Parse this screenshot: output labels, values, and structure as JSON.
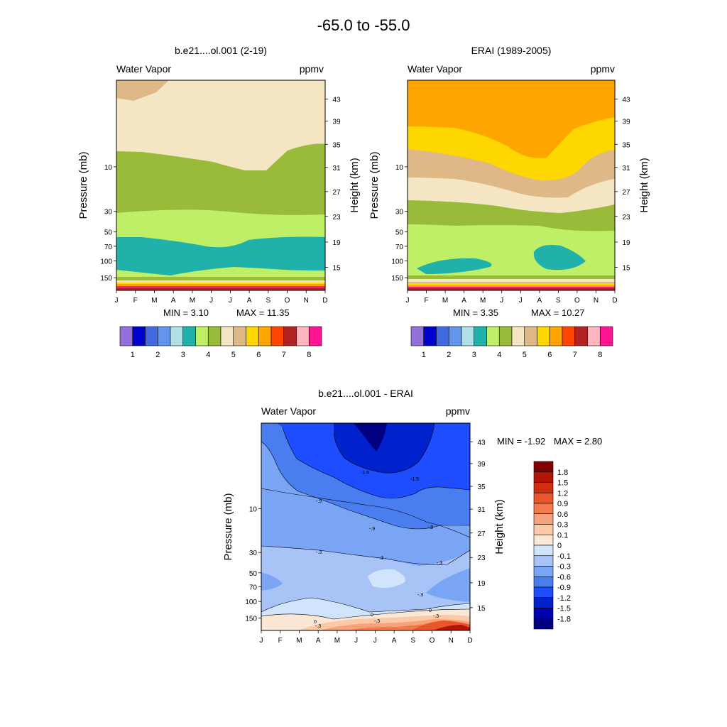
{
  "figure_title": "-65.0 to -55.0",
  "months": [
    "J",
    "F",
    "M",
    "A",
    "M",
    "J",
    "J",
    "A",
    "S",
    "O",
    "N",
    "D"
  ],
  "pressure_ticks": [
    {
      "label": "10",
      "value": 10
    },
    {
      "label": "30",
      "value": 30
    },
    {
      "label": "50",
      "value": 50
    },
    {
      "label": "70",
      "value": 70
    },
    {
      "label": "100",
      "value": 100
    },
    {
      "label": "150",
      "value": 150
    }
  ],
  "height_ticks": [
    "43",
    "39",
    "35",
    "31",
    "27",
    "23",
    "19",
    "15"
  ],
  "pressure_label": "Pressure (mb)",
  "height_label": "Height (km)",
  "colors": {
    "wv_levels": [
      "#9370db",
      "#0000cd",
      "#4169e1",
      "#6495ed",
      "#b0e0e6",
      "#20b2aa",
      "#bfef66",
      "#9aba3a",
      "#f5e6c3",
      "#deb887",
      "#ffd700",
      "#ffa500",
      "#ff4500",
      "#b22222",
      "#ffb6c1",
      "#ff1493"
    ],
    "diff_levels": [
      "#000080",
      "#0000b0",
      "#0022cc",
      "#1e4cff",
      "#4a7df0",
      "#7aa5f5",
      "#a8c4f7",
      "#d0e4fb",
      "#fbe7d6",
      "#f9c9a8",
      "#f7a27b",
      "#f27a4c",
      "#e8562a",
      "#d02e10",
      "#b01505",
      "#800000"
    ]
  },
  "chart_data": [
    {
      "type": "heatmap",
      "title": "b.e21....ol.001 (2-19)",
      "left_string": "Water Vapor",
      "right_string": "ppmv",
      "xlabel": "",
      "ylabel": "Pressure (mb)",
      "y2label": "Height (km)",
      "units": "ppmv",
      "min_label": "MIN =   3.10",
      "max_label": "MAX =  11.35",
      "min": 3.1,
      "max": 11.35,
      "colorbar_labels": [
        "1",
        "2",
        "3",
        "4",
        "5",
        "6",
        "7",
        "8"
      ],
      "note": "monthly (J-D) vs pressure water vapor, contour-filled bands from top to bottom",
      "bands_top_to_bottom": [
        {
          "level_range": "5.5-6",
          "color": "#deb887",
          "region": "top-left corner only"
        },
        {
          "level_range": "5-5.5",
          "color": "#f5e6c3"
        },
        {
          "level_range": "4.5-5",
          "color": "#9aba3a"
        },
        {
          "level_range": "4-4.5",
          "color": "#bfef66"
        },
        {
          "level_range": "3.5-4",
          "color": "#20b2aa"
        },
        {
          "level_range": "4-4.5",
          "color": "#bfef66"
        },
        {
          "level_range": ">4.5",
          "color": "#ff1493",
          "region": "near 170 mb"
        }
      ]
    },
    {
      "type": "heatmap",
      "title": "ERAI (1989-2005)",
      "left_string": "Water Vapor",
      "right_string": "ppmv",
      "xlabel": "",
      "ylabel": "Pressure (mb)",
      "y2label": "Height (km)",
      "units": "ppmv",
      "min_label": "MIN =   3.35",
      "max_label": "MAX =  10.27",
      "min": 3.35,
      "max": 10.27,
      "colorbar_labels": [
        "1",
        "2",
        "3",
        "4",
        "5",
        "6",
        "7",
        "8"
      ],
      "bands_top_to_bottom": [
        {
          "level_range": "6-6.5",
          "color": "#ffa500"
        },
        {
          "level_range": "5.5-6",
          "color": "#ffd700"
        },
        {
          "level_range": "5-5.5",
          "color": "#deb887"
        },
        {
          "level_range": "4.5-5",
          "color": "#f5e6c3"
        },
        {
          "level_range": "4-4.5",
          "color": "#9aba3a"
        },
        {
          "level_range": "3.5-4",
          "color": "#bfef66"
        },
        {
          "level_range": "3-3.5",
          "color": "#20b2aa",
          "region": "cells in Feb-May and Jul-Sep near 90 mb"
        }
      ]
    },
    {
      "type": "heatmap",
      "title": "b.e21....ol.001 - ERAI",
      "left_string": "Water Vapor",
      "right_string": "ppmv",
      "xlabel": "",
      "ylabel": "Pressure (mb)",
      "y2label": "Height (km)",
      "units": "ppmv",
      "min_label": "MIN =  -1.92",
      "max_label": "MAX =   2.80",
      "min": -1.92,
      "max": 2.8,
      "colorbar_labels": [
        "1.8",
        "1.5",
        "1.2",
        "0.9",
        "0.6",
        "0.3",
        "0.1",
        "0",
        "-0.1",
        "-0.3",
        "-0.6",
        "-0.9",
        "-1.2",
        "-1.5",
        "-1.8"
      ],
      "contour_labels": [
        "-1.5",
        "-1.5",
        "-.9",
        "-.9",
        "-.9",
        "-.3",
        "-.3",
        "-.3",
        "-.3",
        "0",
        "0",
        "0",
        "-.3",
        "-.3",
        "-.3"
      ]
    }
  ]
}
